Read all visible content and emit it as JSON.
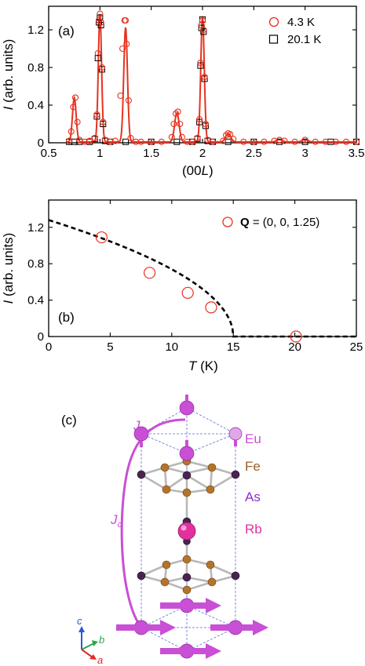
{
  "chart_data": [
    {
      "panel": "(a)",
      "type": "line",
      "xlabel": "(00L)",
      "ylabel": "I (arb. units)",
      "xlim": [
        0.5,
        3.5
      ],
      "ylim": [
        0,
        1.45
      ],
      "xticks": [
        0.5,
        1.0,
        1.5,
        2.0,
        2.5,
        3.0,
        3.5
      ],
      "xtick_labels": [
        "0.5",
        "1",
        "1.5",
        "2",
        "2.5",
        "3",
        "3.5"
      ],
      "yticks": [
        0,
        0.4,
        0.8,
        1.2
      ],
      "ytick_labels": [
        "0",
        "0.4",
        "0.8",
        "1.2"
      ],
      "legend": {
        "position": "top-right",
        "entries": [
          "4.3 K",
          "20.1 K"
        ]
      },
      "fit_peaks": [
        {
          "center": 0.75,
          "height": 0.47,
          "width": 0.018
        },
        {
          "center": 1.0,
          "height": 1.36,
          "width": 0.016
        },
        {
          "center": 1.25,
          "height": 1.22,
          "width": 0.018
        },
        {
          "center": 1.75,
          "height": 0.31,
          "width": 0.022
        },
        {
          "center": 2.0,
          "height": 1.33,
          "width": 0.017
        },
        {
          "center": 2.25,
          "height": 0.09,
          "width": 0.025
        },
        {
          "center": 2.75,
          "height": 0.025,
          "width": 0.03
        },
        {
          "center": 3.0,
          "height": 0.025,
          "width": 0.03
        }
      ],
      "series": [
        {
          "name": "4.3 K",
          "marker": "circle",
          "color": "#e8321e",
          "x": [
            0.7,
            0.72,
            0.74,
            0.76,
            0.78,
            0.8,
            0.85,
            0.9,
            0.95,
            0.97,
            0.98,
            0.99,
            1.0,
            1.01,
            1.02,
            1.03,
            1.05,
            1.1,
            1.15,
            1.2,
            1.22,
            1.24,
            1.25,
            1.26,
            1.28,
            1.3,
            1.35,
            1.4,
            1.5,
            1.6,
            1.7,
            1.72,
            1.74,
            1.76,
            1.78,
            1.8,
            1.85,
            1.9,
            1.95,
            1.97,
            1.98,
            1.99,
            2.0,
            2.01,
            2.02,
            2.03,
            2.05,
            2.1,
            2.2,
            2.23,
            2.25,
            2.27,
            2.3,
            2.4,
            2.5,
            2.6,
            2.7,
            2.75,
            2.8,
            2.9,
            3.0,
            3.1,
            3.2,
            3.3,
            3.4,
            3.5
          ],
          "y": [
            0.02,
            0.12,
            0.38,
            0.48,
            0.22,
            0.03,
            0.01,
            0.02,
            0.05,
            0.3,
            0.95,
            1.3,
            1.37,
            1.28,
            0.8,
            0.22,
            0.03,
            0.01,
            0.02,
            0.5,
            1.0,
            1.3,
            1.3,
            1.05,
            0.45,
            0.05,
            0.01,
            0.01,
            0.01,
            0.01,
            0.06,
            0.2,
            0.31,
            0.33,
            0.2,
            0.06,
            0.01,
            0.01,
            0.05,
            0.25,
            0.85,
            1.25,
            1.3,
            1.2,
            0.7,
            0.2,
            0.03,
            0.01,
            0.02,
            0.08,
            0.1,
            0.09,
            0.04,
            0.01,
            0.01,
            0.01,
            0.02,
            0.03,
            0.02,
            0.01,
            0.03,
            0.01,
            0.01,
            0.01,
            0.01,
            0.01
          ]
        },
        {
          "name": "20.1 K",
          "marker": "square",
          "color": "#000000",
          "x": [
            0.7,
            0.75,
            0.8,
            0.9,
            0.95,
            0.97,
            0.98,
            0.99,
            1.0,
            1.01,
            1.02,
            1.03,
            1.05,
            1.1,
            1.25,
            1.5,
            1.75,
            1.9,
            1.95,
            1.97,
            1.98,
            1.99,
            2.0,
            2.01,
            2.02,
            2.03,
            2.05,
            2.1,
            2.25,
            2.5,
            2.75,
            3.0,
            3.25,
            3.5
          ],
          "y": [
            0.01,
            0.01,
            0.01,
            0.01,
            0.04,
            0.28,
            0.9,
            1.28,
            1.33,
            1.25,
            0.78,
            0.2,
            0.02,
            0.01,
            0.01,
            0.01,
            0.01,
            0.01,
            0.04,
            0.22,
            0.82,
            1.22,
            1.31,
            1.18,
            0.68,
            0.18,
            0.02,
            0.01,
            0.01,
            0.01,
            0.01,
            0.01,
            0.01,
            0.01
          ]
        }
      ]
    },
    {
      "panel": "(b)",
      "type": "scatter",
      "xlabel": "T (K)",
      "ylabel": "I (arb. units)",
      "xlim": [
        0,
        25
      ],
      "ylim": [
        0,
        1.5
      ],
      "xticks": [
        0,
        5,
        10,
        15,
        20,
        25
      ],
      "xtick_labels": [
        "0",
        "5",
        "10",
        "15",
        "20",
        "25"
      ],
      "yticks": [
        0,
        0.4,
        0.8,
        1.2
      ],
      "ytick_labels": [
        "0",
        "0.4",
        "0.8",
        "1.2"
      ],
      "legend": {
        "position": "top-right",
        "entries": [
          "Q = (0, 0, 1.25)"
        ]
      },
      "series": [
        {
          "name": "Q = (0, 0, 1.25)",
          "marker": "circle",
          "color": "#e8321e",
          "x": [
            4.3,
            8.2,
            11.3,
            13.2,
            20.1
          ],
          "y": [
            1.09,
            0.7,
            0.48,
            0.32,
            0.0
          ]
        }
      ],
      "fit": {
        "style": "dashed",
        "Tn": 15.0,
        "amplitude": 1.28,
        "exponent": 0.5
      }
    }
  ],
  "panel_a": {
    "label": "(a)",
    "legend_1": "4.3 K",
    "legend_2": "20.1 K",
    "xlabel_main": "(00",
    "xlabel_italic": "L",
    "xlabel_end": ")",
    "ylabel_italic": "I",
    "ylabel_rest": " (arb. units)"
  },
  "panel_b": {
    "label": "(b)",
    "legend_bold": "Q",
    "legend_rest": " = (0, 0, 1.25)",
    "xlabel_italic": "T",
    "xlabel_rest": " (K)",
    "ylabel_italic": "I",
    "ylabel_rest": " (arb. units)"
  },
  "panel_c": {
    "label": "(c)",
    "j1_italic": "J",
    "j1_sub": "1",
    "jc_italic": "J",
    "jc_sub": "c",
    "legend": [
      {
        "name": "Eu",
        "color": "#c94fd6"
      },
      {
        "name": "Fe",
        "color": "#9a6128"
      },
      {
        "name": "As",
        "color": "#8c2fc9"
      },
      {
        "name": "Rb",
        "color": "#e0329c"
      }
    ],
    "axes": {
      "c": "c",
      "b": "b",
      "a": "a"
    }
  },
  "colors": {
    "fit": "#e8321e",
    "eu": "#c94fd6",
    "fe": "#b57428",
    "as": "#4a2350",
    "rb": "#e0329c",
    "cell": "#5a6fd6"
  }
}
